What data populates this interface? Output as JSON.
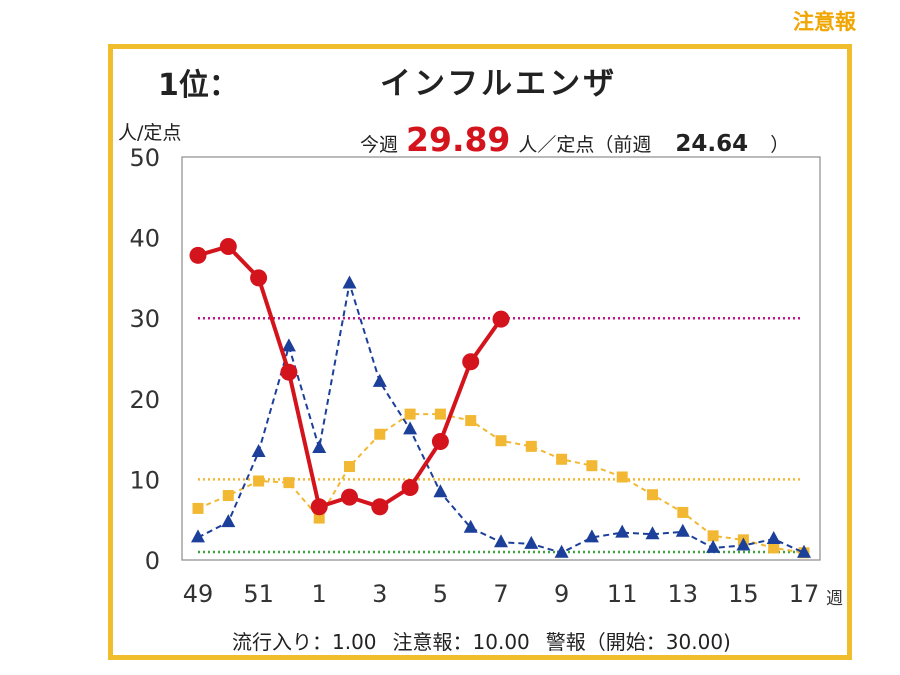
{
  "header_tag": {
    "label": "注意報",
    "color": "#f0a500"
  },
  "rank_label": "1位：",
  "disease_name": "インフルエンザ",
  "y_unit_label": "人/定点",
  "weekly": {
    "this_week_label": "今週",
    "this_week_value": "29.89",
    "unit_label": "人／定点（前週",
    "prev_value": "24.64",
    "close": "）"
  },
  "thresholds": {
    "epidemic_start": "流行入り：1.00",
    "advisory": "注意報：10.00",
    "warning": "警報（開始：30.00)"
  },
  "colors": {
    "frame": "#f0bd2d",
    "current": "#d4141c",
    "previous": "#1c3f9a",
    "average": "#f2b833",
    "warning_line": "#c4148a",
    "advisory_line": "#f2b833",
    "epidemic_line": "#3aa63a"
  },
  "chart_data": {
    "type": "line",
    "x_unit": "週",
    "ylim": [
      0,
      50
    ],
    "y_ticks": [
      0,
      10,
      20,
      30,
      40,
      50
    ],
    "x_tick_labels": [
      "49",
      "51",
      "1",
      "3",
      "5",
      "7",
      "9",
      "11",
      "13",
      "15",
      "17"
    ],
    "x_weeks": [
      "49",
      "50",
      "51",
      "52",
      "1",
      "2",
      "3",
      "4",
      "5",
      "6",
      "7",
      "8",
      "9",
      "10",
      "11",
      "12",
      "13",
      "14",
      "15",
      "16",
      "17"
    ],
    "reference_lines": [
      {
        "value": 30,
        "style": "warning"
      },
      {
        "value": 10,
        "style": "advisory"
      },
      {
        "value": 1,
        "style": "epidemic"
      }
    ],
    "series": [
      {
        "key": "current",
        "values": [
          37.8,
          38.9,
          35.0,
          23.3,
          6.6,
          7.8,
          6.6,
          9.0,
          14.7,
          24.6,
          29.89,
          null,
          null,
          null,
          null,
          null,
          null,
          null,
          null,
          null,
          null
        ]
      },
      {
        "key": "previous",
        "values": [
          2.8,
          4.7,
          13.4,
          26.5,
          13.9,
          34.3,
          22.1,
          16.2,
          8.4,
          4.0,
          2.2,
          2.0,
          0.9,
          2.8,
          3.4,
          3.2,
          3.5,
          1.5,
          1.8,
          2.6,
          0.9
        ]
      },
      {
        "key": "average",
        "values": [
          6.4,
          8.0,
          9.8,
          9.6,
          5.2,
          11.6,
          15.6,
          18.1,
          18.1,
          17.3,
          14.8,
          14.1,
          12.5,
          11.7,
          10.3,
          8.1,
          5.9,
          3.0,
          2.5,
          1.5,
          0.9
        ]
      }
    ]
  }
}
